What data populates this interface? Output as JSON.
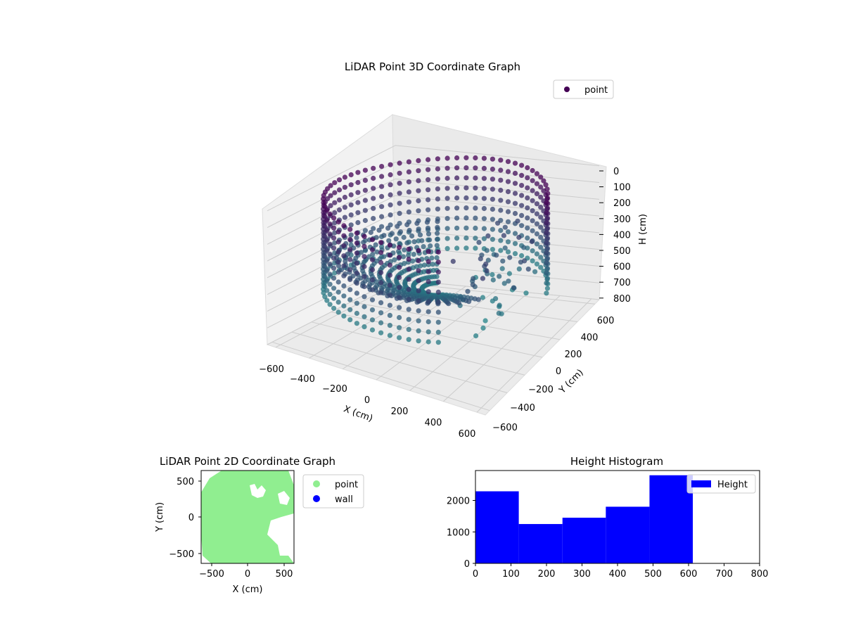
{
  "figure": {
    "colors": {
      "viridis_start": "#440154",
      "viridis_mid": "#21908d",
      "point_2d": "#90ee90",
      "wall_2d": "#0000ff",
      "hist_bar": "#0000ff",
      "grid": "#cccccc",
      "pane": "#f2f2f2"
    }
  },
  "chart_data": [
    {
      "type": "scatter",
      "projection": "3d",
      "title": "LiDAR Point 3D Coordinate Graph",
      "xlabel": "X (cm)",
      "ylabel": "Y (cm)",
      "zlabel": "H (cm)",
      "xlim": [
        -650,
        650
      ],
      "ylim": [
        -650,
        650
      ],
      "zlim": [
        800,
        0
      ],
      "x_ticks": [
        "−600",
        "−400",
        "−200",
        "0",
        "200",
        "400",
        "600"
      ],
      "y_ticks": [
        "−600",
        "−400",
        "−200",
        "0",
        "200",
        "400",
        "600"
      ],
      "z_ticks": [
        "0",
        "100",
        "200",
        "300",
        "400",
        "500",
        "600",
        "700",
        "800"
      ],
      "colormap": "viridis",
      "legend": {
        "entries": [
          "point"
        ],
        "placement": "top-right"
      },
      "series": [
        {
          "name": "point",
          "description_of_shape": "outer cylindrical wall radius ~600 cm, heights 0-600; dense cone inward",
          "x": [
            -600,
            -420,
            0,
            420,
            600,
            420,
            0,
            -420,
            -300,
            0,
            300,
            150,
            -150,
            200,
            400,
            250
          ],
          "y": [
            0,
            420,
            600,
            420,
            0,
            -420,
            -600,
            -420,
            0,
            300,
            0,
            -200,
            -200,
            350,
            250,
            150
          ],
          "z": [
            0,
            100,
            200,
            300,
            400,
            500,
            600,
            0,
            500,
            550,
            450,
            600,
            580,
            300,
            350,
            400
          ]
        }
      ]
    },
    {
      "type": "scatter",
      "title": "LiDAR Point 2D Coordinate Graph",
      "xlabel": "X (cm)",
      "ylabel": "Y (cm)",
      "xlim": [
        -650,
        650
      ],
      "ylim": [
        -650,
        650
      ],
      "x_ticks": [
        "−500",
        "0",
        "500"
      ],
      "y_ticks": [
        "500",
        "0",
        "−500"
      ],
      "legend": {
        "entries": [
          "point",
          "wall"
        ],
        "placement": "outside-right"
      },
      "series": [
        {
          "name": "point",
          "color": "#90ee90"
        },
        {
          "name": "wall",
          "color": "#0000ff"
        }
      ]
    },
    {
      "type": "bar",
      "subtype": "histogram",
      "title": "Height Histogram",
      "xlim": [
        0,
        800
      ],
      "ylim": [
        0,
        2950
      ],
      "x_ticks": [
        0,
        100,
        200,
        300,
        400,
        500,
        600,
        700,
        800
      ],
      "y_ticks": [
        0,
        1000,
        2000
      ],
      "bin_edges": [
        0,
        122,
        245,
        367,
        490,
        612
      ],
      "values": [
        2290,
        1250,
        1450,
        1800,
        2800
      ],
      "legend": {
        "entries": [
          "Height"
        ],
        "placement": "top-right"
      },
      "series": [
        {
          "name": "Height",
          "color": "#0000ff"
        }
      ]
    }
  ]
}
